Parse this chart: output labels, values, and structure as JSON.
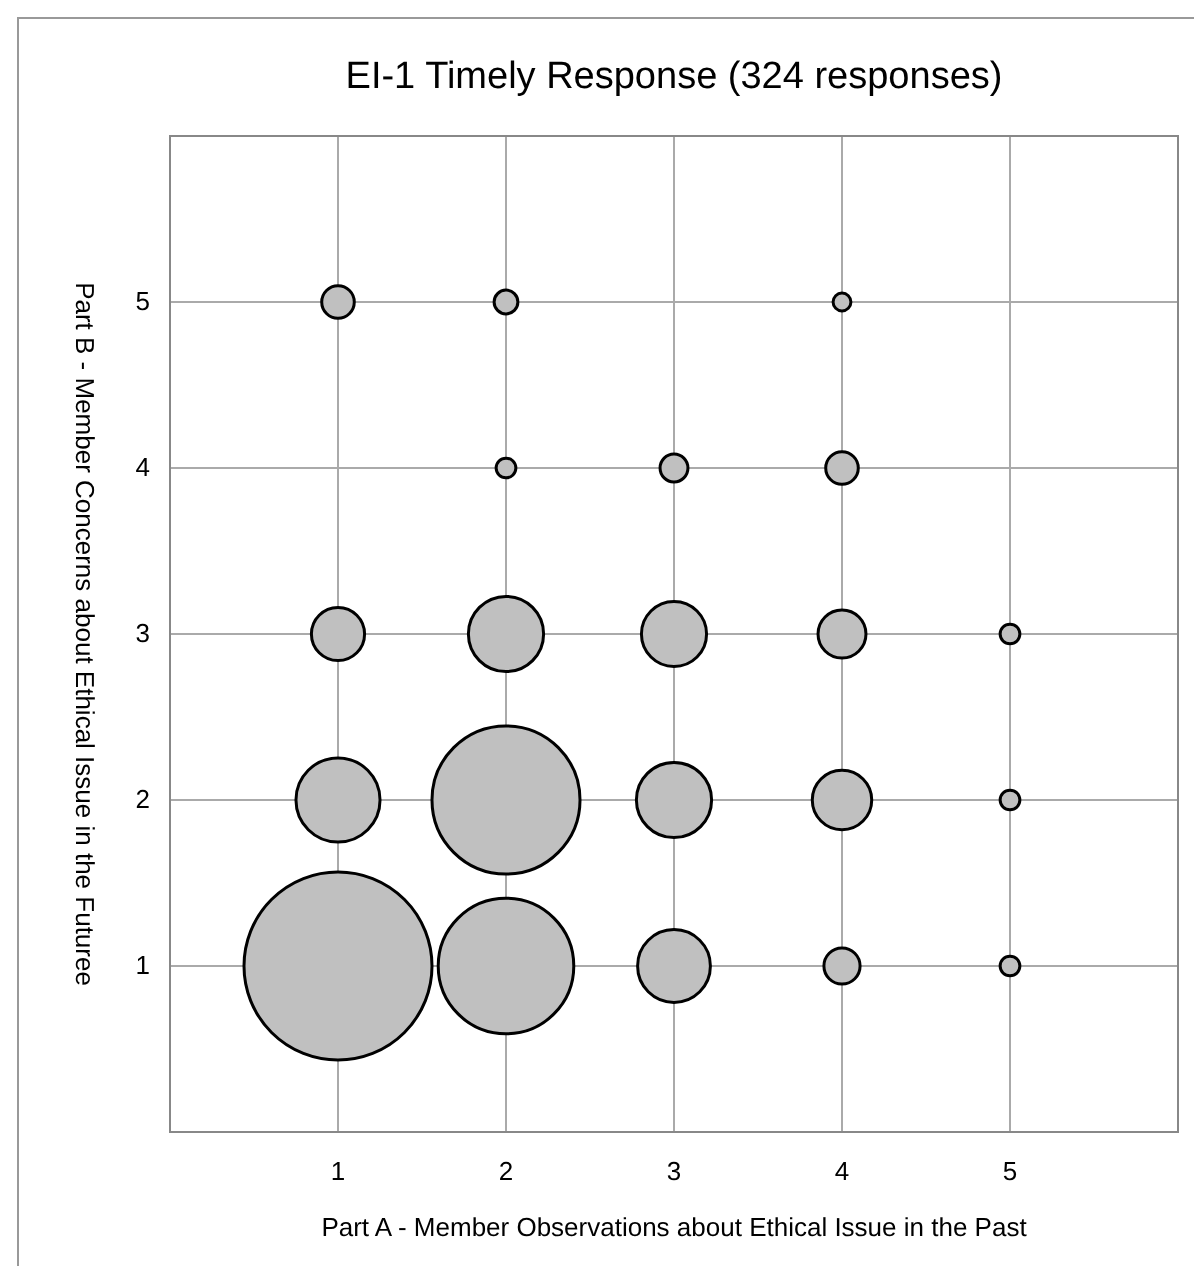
{
  "chart_data": {
    "type": "bubble",
    "title": "EI-1 Timely Response  (324 responses)",
    "xlabel": "Part A - Member Observations about Ethical Issue in the Past",
    "ylabel": "Part B - Member Concerns about Ethical Issue in the Futuree",
    "x": [
      1,
      2,
      2,
      1,
      2,
      3,
      3,
      3,
      4,
      1,
      4,
      1,
      2,
      3,
      4,
      4,
      2,
      4,
      5,
      5,
      5
    ],
    "values": [
      1,
      2,
      1,
      2,
      3,
      2,
      1,
      3,
      2,
      3,
      3,
      5,
      5,
      4,
      4,
      1,
      4,
      5,
      3,
      2,
      1
    ],
    "sizes": [
      1,
      0.62,
      0.52,
      0.2,
      0.16,
      0.16,
      0.15,
      0.12,
      0.1,
      0.08,
      0.065,
      0.03,
      0.016,
      0.022,
      0.03,
      0.037,
      0.011,
      0.009,
      0.011,
      0.011,
      0.011
    ],
    "color": "#c0c0c0",
    "xlim": [
      0,
      6
    ],
    "xticks": [
      1,
      2,
      3,
      4,
      5
    ],
    "ylim": [
      0,
      6
    ],
    "yticks": [
      1,
      2,
      3,
      4,
      5
    ],
    "grid": true
  }
}
